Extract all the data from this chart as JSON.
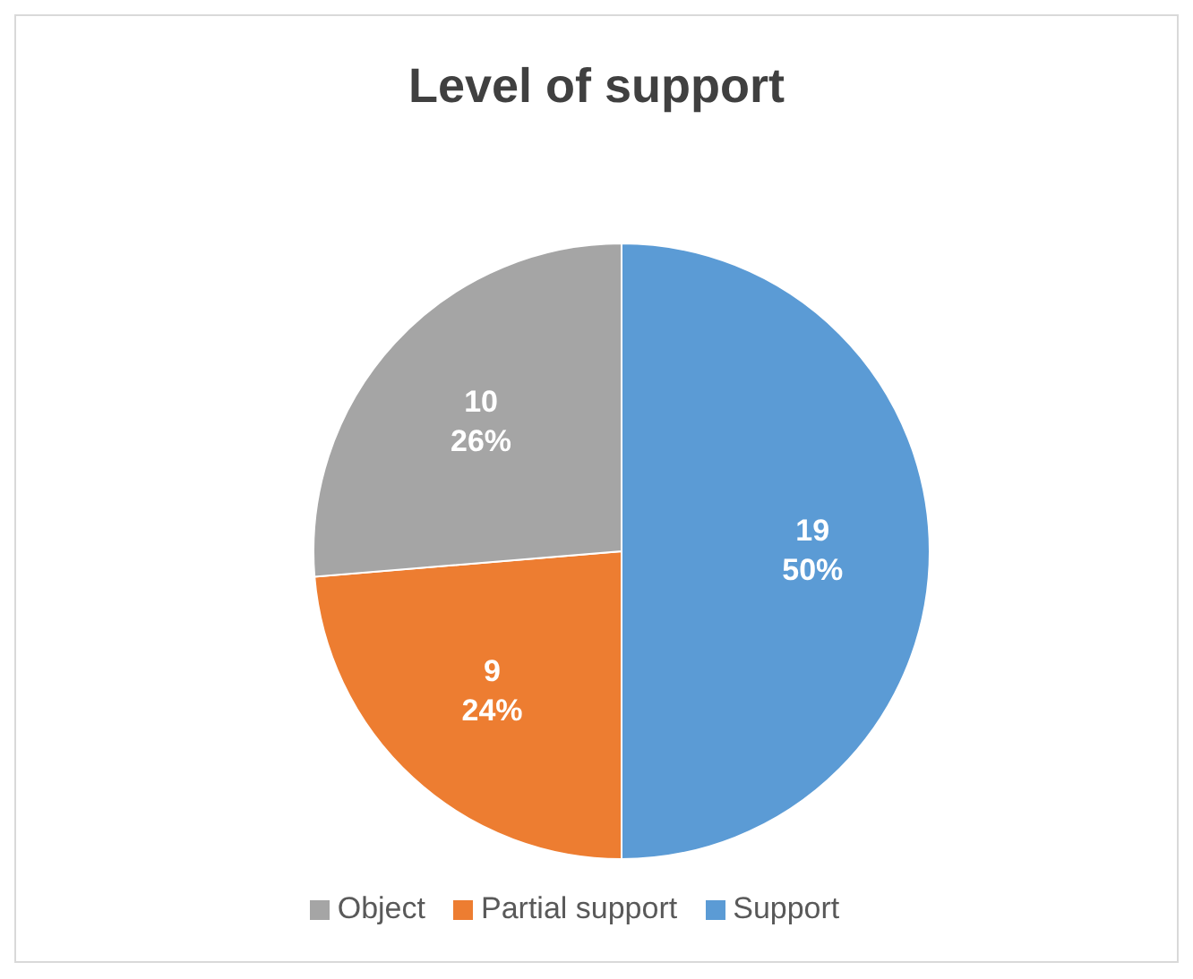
{
  "chart_data": {
    "type": "pie",
    "title": "Level of support",
    "categories": [
      "Support",
      "Partial support",
      "Object"
    ],
    "values": [
      19,
      9,
      10
    ],
    "colors": [
      "#5b9bd5",
      "#ed7d31",
      "#a5a5a5"
    ],
    "value_labels": [
      "19\n50%",
      "9\n24%",
      "10\n26%"
    ],
    "legend": "bottom"
  }
}
